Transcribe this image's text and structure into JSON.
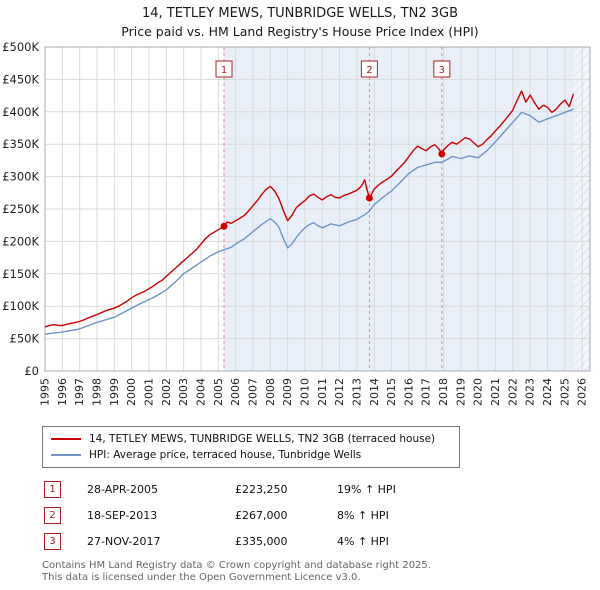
{
  "page_title": {
    "line1": "14, TETLEY MEWS, TUNBRIDGE WELLS, TN2 3GB",
    "line2": "Price paid vs. HM Land Registry's House Price Index (HPI)"
  },
  "chart_data": {
    "type": "line",
    "x_range": [
      1995,
      2026.45
    ],
    "y_range": [
      0,
      500000
    ],
    "y_ticks": [
      0,
      50000,
      100000,
      150000,
      200000,
      250000,
      300000,
      350000,
      400000,
      450000,
      500000
    ],
    "y_tick_labels": [
      "£0",
      "£50K",
      "£100K",
      "£150K",
      "£200K",
      "£250K",
      "£300K",
      "£350K",
      "£400K",
      "£450K",
      "£500K"
    ],
    "x_ticks": [
      1995,
      1996,
      1997,
      1998,
      1999,
      2000,
      2001,
      2002,
      2003,
      2004,
      2005,
      2006,
      2007,
      2008,
      2009,
      2010,
      2011,
      2012,
      2013,
      2014,
      2015,
      2016,
      2017,
      2018,
      2019,
      2020,
      2021,
      2022,
      2023,
      2024,
      2025,
      2026
    ],
    "grid": true,
    "shade_color": "#e9eff9",
    "hatch_color": "#c4d1e6",
    "sale_line_color": "#e08a8a",
    "marker_color": "#aa2222",
    "shaded_region": {
      "start": 2005.33,
      "end": 2025.55
    },
    "hatched_region": {
      "start": 2025.55,
      "end": 2026.45
    },
    "series": [
      {
        "name": "14, TETLEY MEWS, TUNBRIDGE WELLS, TN2 3GB (terraced house)",
        "color": "#cc0000",
        "points": [
          [
            1995.0,
            68000
          ],
          [
            1995.25,
            70000
          ],
          [
            1995.5,
            71500
          ],
          [
            1995.75,
            70500
          ],
          [
            1996.0,
            70000
          ],
          [
            1996.25,
            72000
          ],
          [
            1996.5,
            73500
          ],
          [
            1996.75,
            75000
          ],
          [
            1997.0,
            76500
          ],
          [
            1997.25,
            79000
          ],
          [
            1997.5,
            82000
          ],
          [
            1997.75,
            84500
          ],
          [
            1998.0,
            87000
          ],
          [
            1998.25,
            90000
          ],
          [
            1998.5,
            93000
          ],
          [
            1998.75,
            95000
          ],
          [
            1999.0,
            97000
          ],
          [
            1999.25,
            100000
          ],
          [
            1999.5,
            104000
          ],
          [
            1999.75,
            108000
          ],
          [
            2000.0,
            113000
          ],
          [
            2000.25,
            117000
          ],
          [
            2000.5,
            120000
          ],
          [
            2000.75,
            123000
          ],
          [
            2001.0,
            127000
          ],
          [
            2001.25,
            131000
          ],
          [
            2001.5,
            136000
          ],
          [
            2001.75,
            140000
          ],
          [
            2002.0,
            146000
          ],
          [
            2002.25,
            152000
          ],
          [
            2002.5,
            158000
          ],
          [
            2002.75,
            164000
          ],
          [
            2003.0,
            170000
          ],
          [
            2003.25,
            176000
          ],
          [
            2003.5,
            182000
          ],
          [
            2003.75,
            188000
          ],
          [
            2004.0,
            196000
          ],
          [
            2004.25,
            204000
          ],
          [
            2004.5,
            210000
          ],
          [
            2004.75,
            214000
          ],
          [
            2005.0,
            218000
          ],
          [
            2005.33,
            223250
          ],
          [
            2005.5,
            230000
          ],
          [
            2005.75,
            228000
          ],
          [
            2006.0,
            232000
          ],
          [
            2006.25,
            236000
          ],
          [
            2006.5,
            240000
          ],
          [
            2006.75,
            247000
          ],
          [
            2007.0,
            255000
          ],
          [
            2007.25,
            263000
          ],
          [
            2007.5,
            272000
          ],
          [
            2007.75,
            280000
          ],
          [
            2008.0,
            285000
          ],
          [
            2008.25,
            278000
          ],
          [
            2008.5,
            266000
          ],
          [
            2008.75,
            248000
          ],
          [
            2009.0,
            232000
          ],
          [
            2009.25,
            240000
          ],
          [
            2009.5,
            252000
          ],
          [
            2009.75,
            258000
          ],
          [
            2010.0,
            263000
          ],
          [
            2010.25,
            270000
          ],
          [
            2010.5,
            273000
          ],
          [
            2010.75,
            268000
          ],
          [
            2011.0,
            264000
          ],
          [
            2011.25,
            269000
          ],
          [
            2011.5,
            272000
          ],
          [
            2011.75,
            268000
          ],
          [
            2012.0,
            267000
          ],
          [
            2012.25,
            271000
          ],
          [
            2012.5,
            273000
          ],
          [
            2012.75,
            276000
          ],
          [
            2013.0,
            279000
          ],
          [
            2013.25,
            285000
          ],
          [
            2013.45,
            295000
          ],
          [
            2013.6,
            278000
          ],
          [
            2013.72,
            267000
          ],
          [
            2014.0,
            281000
          ],
          [
            2014.25,
            287000
          ],
          [
            2014.5,
            292000
          ],
          [
            2014.75,
            296000
          ],
          [
            2015.0,
            301000
          ],
          [
            2015.25,
            308000
          ],
          [
            2015.5,
            315000
          ],
          [
            2015.75,
            322000
          ],
          [
            2016.0,
            331000
          ],
          [
            2016.25,
            340000
          ],
          [
            2016.5,
            347000
          ],
          [
            2016.75,
            343000
          ],
          [
            2017.0,
            340000
          ],
          [
            2017.25,
            346000
          ],
          [
            2017.5,
            349000
          ],
          [
            2017.75,
            342000
          ],
          [
            2017.9,
            335000
          ],
          [
            2018.0,
            341000
          ],
          [
            2018.25,
            348000
          ],
          [
            2018.5,
            353000
          ],
          [
            2018.75,
            350000
          ],
          [
            2019.0,
            355000
          ],
          [
            2019.25,
            360000
          ],
          [
            2019.5,
            358000
          ],
          [
            2019.75,
            352000
          ],
          [
            2020.0,
            346000
          ],
          [
            2020.25,
            350000
          ],
          [
            2020.5,
            357000
          ],
          [
            2020.75,
            363000
          ],
          [
            2021.0,
            371000
          ],
          [
            2021.25,
            378000
          ],
          [
            2021.5,
            386000
          ],
          [
            2021.75,
            394000
          ],
          [
            2022.0,
            403000
          ],
          [
            2022.25,
            418000
          ],
          [
            2022.5,
            432000
          ],
          [
            2022.75,
            415000
          ],
          [
            2023.0,
            426000
          ],
          [
            2023.25,
            414000
          ],
          [
            2023.5,
            404000
          ],
          [
            2023.75,
            410000
          ],
          [
            2024.0,
            407000
          ],
          [
            2024.25,
            399000
          ],
          [
            2024.5,
            404000
          ],
          [
            2024.75,
            412000
          ],
          [
            2025.0,
            418000
          ],
          [
            2025.25,
            408000
          ],
          [
            2025.5,
            428000
          ]
        ]
      },
      {
        "name": "HPI: Average price, terraced house, Tunbridge Wells",
        "color": "#6f95c5",
        "points": [
          [
            1995.0,
            57000
          ],
          [
            1995.5,
            58500
          ],
          [
            1996.0,
            60000
          ],
          [
            1996.5,
            62500
          ],
          [
            1997.0,
            65000
          ],
          [
            1997.5,
            70000
          ],
          [
            1998.0,
            75000
          ],
          [
            1998.5,
            79000
          ],
          [
            1999.0,
            83000
          ],
          [
            1999.5,
            90000
          ],
          [
            2000.0,
            97000
          ],
          [
            2000.5,
            104000
          ],
          [
            2001.0,
            110000
          ],
          [
            2001.5,
            117000
          ],
          [
            2002.0,
            125000
          ],
          [
            2002.5,
            137000
          ],
          [
            2003.0,
            150000
          ],
          [
            2003.5,
            159000
          ],
          [
            2004.0,
            168000
          ],
          [
            2004.5,
            177000
          ],
          [
            2005.0,
            184000
          ],
          [
            2005.33,
            187000
          ],
          [
            2005.75,
            191000
          ],
          [
            2006.0,
            196000
          ],
          [
            2006.5,
            204000
          ],
          [
            2007.0,
            215000
          ],
          [
            2007.5,
            226000
          ],
          [
            2008.0,
            235000
          ],
          [
            2008.25,
            230000
          ],
          [
            2008.5,
            222000
          ],
          [
            2008.75,
            205000
          ],
          [
            2009.0,
            190000
          ],
          [
            2009.25,
            196000
          ],
          [
            2009.5,
            206000
          ],
          [
            2009.75,
            214000
          ],
          [
            2010.0,
            221000
          ],
          [
            2010.25,
            226000
          ],
          [
            2010.5,
            229000
          ],
          [
            2010.75,
            224000
          ],
          [
            2011.0,
            221000
          ],
          [
            2011.5,
            227000
          ],
          [
            2012.0,
            224000
          ],
          [
            2012.5,
            230000
          ],
          [
            2013.0,
            234000
          ],
          [
            2013.5,
            242000
          ],
          [
            2013.72,
            247000
          ],
          [
            2014.0,
            257000
          ],
          [
            2014.5,
            268000
          ],
          [
            2015.0,
            278000
          ],
          [
            2015.5,
            291000
          ],
          [
            2016.0,
            305000
          ],
          [
            2016.5,
            314000
          ],
          [
            2017.0,
            318000
          ],
          [
            2017.5,
            322000
          ],
          [
            2017.9,
            322000
          ],
          [
            2018.25,
            327000
          ],
          [
            2018.5,
            331000
          ],
          [
            2019.0,
            328000
          ],
          [
            2019.5,
            332000
          ],
          [
            2020.0,
            329000
          ],
          [
            2020.5,
            340000
          ],
          [
            2021.0,
            354000
          ],
          [
            2021.5,
            369000
          ],
          [
            2022.0,
            384000
          ],
          [
            2022.5,
            399000
          ],
          [
            2023.0,
            394000
          ],
          [
            2023.5,
            384000
          ],
          [
            2024.0,
            389000
          ],
          [
            2024.5,
            394000
          ],
          [
            2025.0,
            399000
          ],
          [
            2025.5,
            404000
          ]
        ]
      }
    ],
    "sales": [
      {
        "n": "1",
        "x": 2005.33,
        "y": 223250
      },
      {
        "n": "2",
        "x": 2013.72,
        "y": 267000
      },
      {
        "n": "3",
        "x": 2017.9,
        "y": 335000
      }
    ]
  },
  "legend": {
    "entries": [
      {
        "label": "14, TETLEY MEWS, TUNBRIDGE WELLS, TN2 3GB (terraced house)"
      },
      {
        "label": "HPI: Average price, terraced house, Tunbridge Wells"
      }
    ]
  },
  "transactions": [
    {
      "n": "1",
      "date": "28-APR-2005",
      "price": "£223,250",
      "hpi": "19% ↑ HPI"
    },
    {
      "n": "2",
      "date": "18-SEP-2013",
      "price": "£267,000",
      "hpi": "8% ↑ HPI"
    },
    {
      "n": "3",
      "date": "27-NOV-2017",
      "price": "£335,000",
      "hpi": "4% ↑ HPI"
    }
  ],
  "footer": {
    "line1": "Contains HM Land Registry data © Crown copyright and database right 2025.",
    "line2": "This data is licensed under the Open Government Licence v3.0."
  }
}
